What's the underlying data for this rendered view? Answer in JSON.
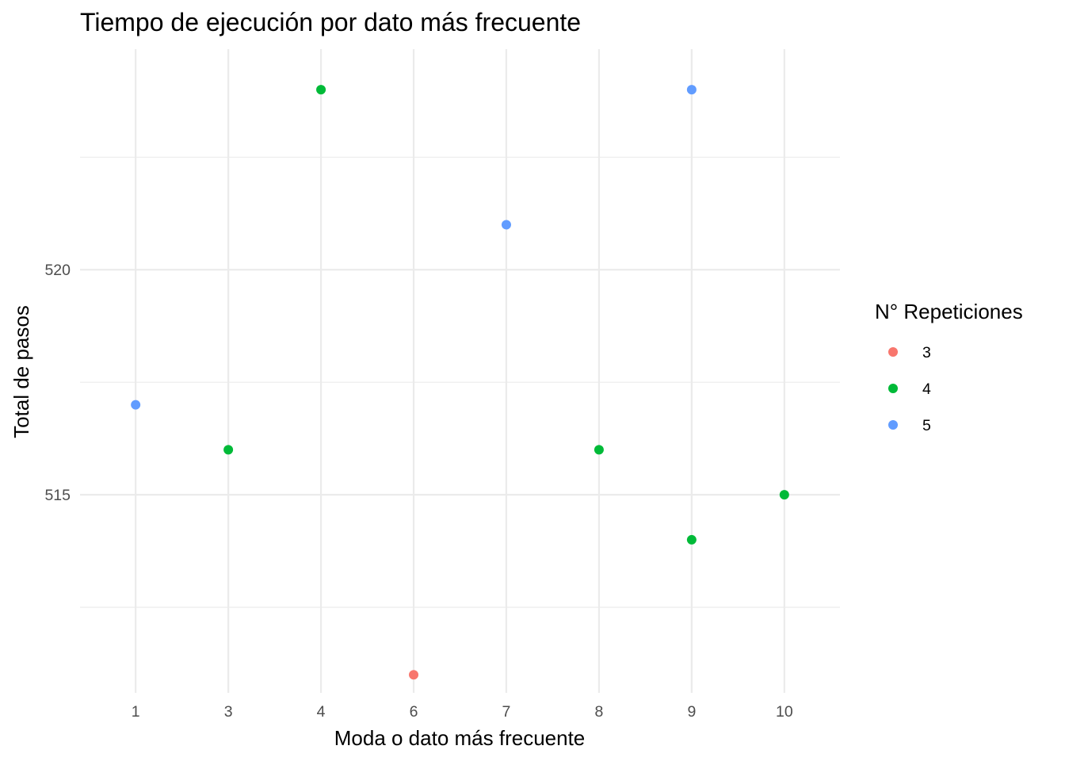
{
  "chart_data": {
    "type": "scatter",
    "title": "Tiempo de ejecución por dato más frecuente",
    "xlabel": "Moda o dato más frecuente",
    "ylabel": "Total de pasos",
    "x_scale": "discrete",
    "categories": [
      "1",
      "3",
      "4",
      "6",
      "7",
      "8",
      "9",
      "10"
    ],
    "y_ticks": [
      515,
      520
    ],
    "y_minor_ticks": [
      512.5,
      517.5,
      522.5
    ],
    "ylim": [
      510.6,
      524.9
    ],
    "grid": true,
    "legend": {
      "title": "N° Repeticiones",
      "placement": "right",
      "entries": [
        {
          "label": "3",
          "color": "#F8766D"
        },
        {
          "label": "4",
          "color": "#00BA38"
        },
        {
          "label": "5",
          "color": "#619CFF"
        }
      ]
    },
    "points": [
      {
        "x": "1",
        "y": 517,
        "group": "5"
      },
      {
        "x": "3",
        "y": 516,
        "group": "4"
      },
      {
        "x": "4",
        "y": 524,
        "group": "4"
      },
      {
        "x": "6",
        "y": 511,
        "group": "3"
      },
      {
        "x": "7",
        "y": 521,
        "group": "5"
      },
      {
        "x": "8",
        "y": 516,
        "group": "4"
      },
      {
        "x": "9",
        "y": 524,
        "group": "5"
      },
      {
        "x": "9",
        "y": 514,
        "group": "4"
      },
      {
        "x": "10",
        "y": 515,
        "group": "4"
      }
    ]
  }
}
